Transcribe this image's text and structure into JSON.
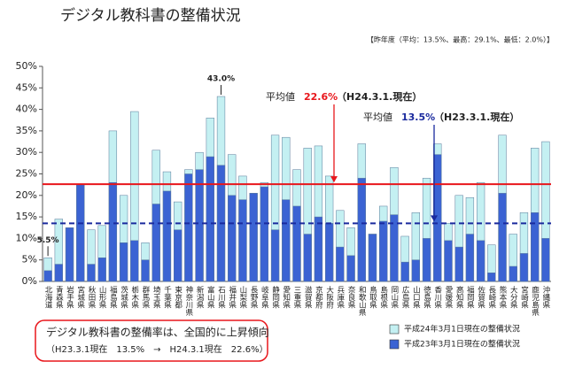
{
  "chart_data": {
    "type": "bar",
    "title": "デジタル教科書の整備状況",
    "subtitle": "【昨年度（平均：13.5%、最高：29.1%、最低：2.0%）】",
    "categories": [
      "北海道",
      "青森県",
      "岩手県",
      "宮城県",
      "秋田県",
      "山形県",
      "福島県",
      "茨城県",
      "栃木県",
      "群馬県",
      "埼玉県",
      "千葉県",
      "東京都",
      "神奈川県",
      "新潟県",
      "富山県",
      "石川県",
      "福井県",
      "山梨県",
      "長野県",
      "岐阜県",
      "静岡県",
      "愛知県",
      "三重県",
      "滋賀県",
      "京都府",
      "大阪府",
      "兵庫県",
      "奈良県",
      "和歌山県",
      "鳥取県",
      "島根県",
      "岡山県",
      "広島県",
      "山口県",
      "徳島県",
      "香川県",
      "愛媛県",
      "高知県",
      "福岡県",
      "佐賀県",
      "長崎県",
      "熊本県",
      "大分県",
      "宮崎県",
      "鹿児島県",
      "沖縄県"
    ],
    "series": [
      {
        "name": "平成24年3月1日現在の整備状況",
        "color": "#c4f0f2",
        "values": [
          5.5,
          14.5,
          12.5,
          22.5,
          12,
          13,
          35,
          20,
          39.5,
          9,
          30.5,
          25.5,
          18.5,
          26,
          30,
          38,
          43,
          29.5,
          24.5,
          20.5,
          23,
          34,
          33.5,
          26,
          31,
          31.5,
          24.5,
          16.5,
          12.5,
          32,
          11,
          17.5,
          26.5,
          10.5,
          16,
          24,
          32,
          13.5,
          20,
          19.5,
          23,
          8.5,
          34,
          11,
          16,
          31,
          32.5
        ],
        "value_labels": [
          "5.5%",
          null,
          null,
          null,
          null,
          null,
          null,
          null,
          null,
          null,
          null,
          null,
          null,
          null,
          null,
          null,
          "43.0%",
          null,
          null,
          null,
          null,
          null,
          null,
          null,
          null,
          null,
          null,
          null,
          null,
          null,
          null,
          null,
          null,
          null,
          null,
          null,
          null,
          null,
          null,
          null,
          null,
          null,
          null,
          null,
          null,
          null,
          null
        ]
      },
      {
        "name": "平成23年3月1日現在の整備状況",
        "color": "#3b63d3",
        "values": [
          2.5,
          4,
          12.5,
          22.5,
          4,
          5.5,
          23,
          9,
          9.5,
          5,
          18,
          21,
          12,
          25,
          26,
          29,
          27,
          20,
          19,
          20.5,
          22,
          12,
          19,
          17.5,
          11,
          15,
          13.5,
          8,
          6,
          24,
          11,
          14,
          15.5,
          4.5,
          5,
          10,
          29.5,
          9.5,
          8,
          11,
          9.5,
          2,
          20.5,
          3.5,
          6.5,
          16,
          10
        ]
      }
    ],
    "reference_lines": [
      {
        "name": "平均値",
        "value": 22.6,
        "value_label": "22.6%",
        "note": "（H24.3.1.現在）",
        "color": "#e8161b",
        "style": "solid"
      },
      {
        "name": "平均値",
        "value": 13.5,
        "value_label": "13.5%",
        "note": "（H23.3.1.現在）",
        "color": "#1a2a9e",
        "style": "dashed"
      }
    ],
    "ylim": [
      0,
      50
    ],
    "yticks": [
      {
        "value": 0,
        "label": "0%"
      },
      {
        "value": 5,
        "label": "5%"
      },
      {
        "value": 10,
        "label": "10%"
      },
      {
        "value": 15,
        "label": "15%"
      },
      {
        "value": 20,
        "label": "20%"
      },
      {
        "value": 25,
        "label": "25%"
      },
      {
        "value": 30,
        "label": "30%"
      },
      {
        "value": 35,
        "label": "35%"
      },
      {
        "value": 40,
        "label": "40%"
      },
      {
        "value": 45,
        "label": "45%"
      },
      {
        "value": 50,
        "label": "50%"
      }
    ],
    "grid": false,
    "summary": {
      "line1": "デジタル教科書の整備率は、全国的に上昇傾向",
      "line2": "（H23.3.1現在　13.5%　→　H24.3.1現在　22.6%）"
    }
  }
}
